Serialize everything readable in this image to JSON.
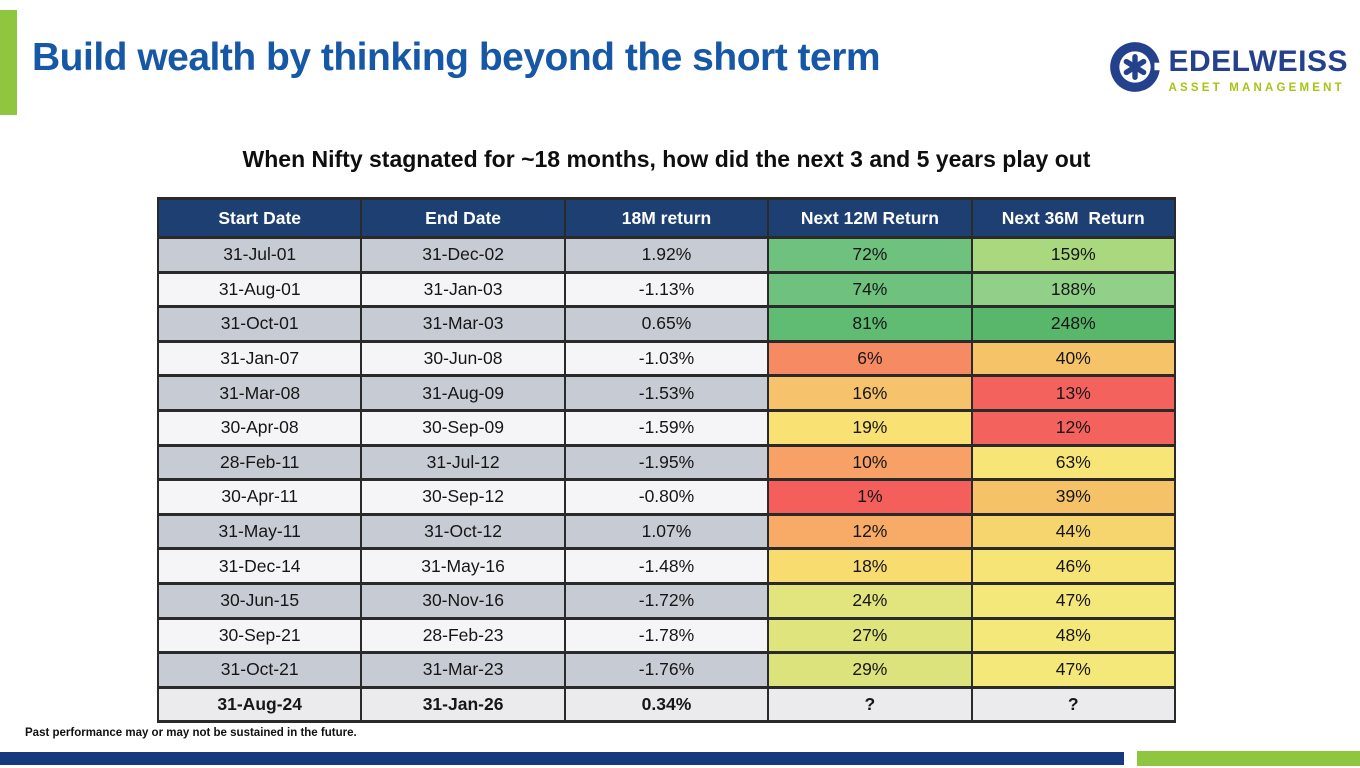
{
  "slide": {
    "title": "Build wealth by thinking beyond the short term",
    "subtitle": "When Nifty stagnated for ~18 months, how did the next 3 and 5 years play out",
    "disclaimer": "Past performance may or may not be sustained in the future."
  },
  "logo": {
    "wordmark": "EDELWEISS",
    "tagline": "ASSET MANAGEMENT",
    "icon": "edelweiss-flower-icon"
  },
  "colors": {
    "title_blue": "#1657a6",
    "header_navy": "#1e3f72",
    "accent_green": "#8ec63f",
    "bottom_bar_blue": "#15397f",
    "logo_navy": "#24418e",
    "logo_green": "#a6c513",
    "row_gray": "#c7cbd3",
    "row_light": "#f5f5f7",
    "row_last": "#ebebed"
  },
  "chart_data": {
    "type": "table",
    "title": "When Nifty stagnated for ~18 months, how did the next 3 and 5 years play out",
    "headers": [
      "Start Date",
      "End Date",
      "18M return",
      "Next 12M Return",
      "Next 36M  Return"
    ],
    "rows": [
      {
        "start": "31-Jul-01",
        "end": "31-Dec-02",
        "ret18": "1.92%",
        "next12": "72%",
        "next12_bg": "#6ec27d",
        "next36": "159%",
        "next36_bg": "#a9d87e",
        "shade": "gray"
      },
      {
        "start": "31-Aug-01",
        "end": "31-Jan-03",
        "ret18": "-1.13%",
        "next12": "74%",
        "next12_bg": "#6ec27d",
        "next36": "188%",
        "next36_bg": "#90d187",
        "shade": "light"
      },
      {
        "start": "31-Oct-01",
        "end": "31-Mar-03",
        "ret18": "0.65%",
        "next12": "81%",
        "next12_bg": "#61bc73",
        "next36": "248%",
        "next36_bg": "#58b76b",
        "shade": "gray"
      },
      {
        "start": "31-Jan-07",
        "end": "30-Jun-08",
        "ret18": "-1.03%",
        "next12": "6%",
        "next12_bg": "#f68a63",
        "next36": "40%",
        "next36_bg": "#f6c369",
        "shade": "light"
      },
      {
        "start": "31-Mar-08",
        "end": "31-Aug-09",
        "ret18": "-1.53%",
        "next12": "16%",
        "next12_bg": "#f6c36c",
        "next36": "13%",
        "next36_bg": "#f4625e",
        "shade": "gray"
      },
      {
        "start": "30-Apr-08",
        "end": "30-Sep-09",
        "ret18": "-1.59%",
        "next12": "19%",
        "next12_bg": "#f9e173",
        "next36": "12%",
        "next36_bg": "#f4625e",
        "shade": "light"
      },
      {
        "start": "28-Feb-11",
        "end": "31-Jul-12",
        "ret18": "-1.95%",
        "next12": "10%",
        "next12_bg": "#f7a166",
        "next36": "63%",
        "next36_bg": "#f8e577",
        "shade": "gray"
      },
      {
        "start": "30-Apr-11",
        "end": "30-Sep-12",
        "ret18": "-0.80%",
        "next12": "1%",
        "next12_bg": "#f45f5c",
        "next36": "39%",
        "next36_bg": "#f6c267",
        "shade": "light"
      },
      {
        "start": "31-May-11",
        "end": "31-Oct-12",
        "ret18": "1.07%",
        "next12": "12%",
        "next12_bg": "#f7ab67",
        "next36": "44%",
        "next36_bg": "#f7d56e",
        "shade": "gray"
      },
      {
        "start": "31-Dec-14",
        "end": "31-May-16",
        "ret18": "-1.48%",
        "next12": "18%",
        "next12_bg": "#f8dc70",
        "next36": "46%",
        "next36_bg": "#f6e476",
        "shade": "light"
      },
      {
        "start": "30-Jun-15",
        "end": "30-Nov-16",
        "ret18": "-1.72%",
        "next12": "24%",
        "next12_bg": "#e2e57e",
        "next36": "47%",
        "next36_bg": "#f5e87a",
        "shade": "gray"
      },
      {
        "start": "30-Sep-21",
        "end": "28-Feb-23",
        "ret18": "-1.78%",
        "next12": "27%",
        "next12_bg": "#dfe47d",
        "next36": "48%",
        "next36_bg": "#f5e87a",
        "shade": "light"
      },
      {
        "start": "31-Oct-21",
        "end": "31-Mar-23",
        "ret18": "-1.76%",
        "next12": "29%",
        "next12_bg": "#dde37c",
        "next36": "47%",
        "next36_bg": "#f5e87a",
        "shade": "gray"
      },
      {
        "start": "31-Aug-24",
        "end": "31-Jan-26",
        "ret18": "0.34%",
        "next12": "?",
        "next12_bg": "",
        "next36": "?",
        "next36_bg": "",
        "shade": "last",
        "bold": true
      }
    ]
  }
}
